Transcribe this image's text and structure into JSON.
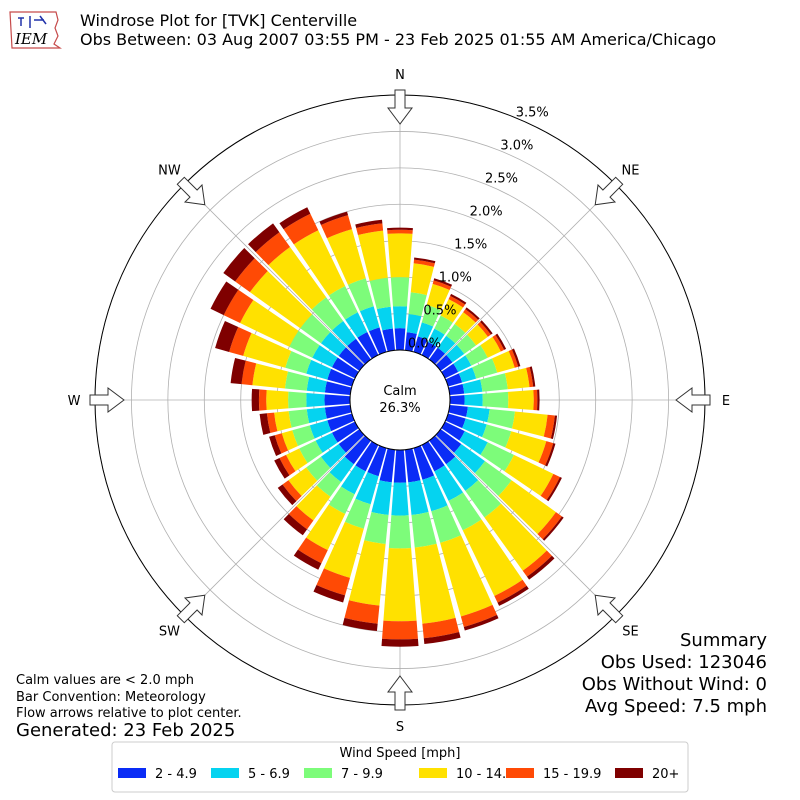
{
  "title": "Windrose Plot for [TVK] Centerville",
  "subtitle": "Obs Between: 03 Aug 2007 03:55 PM - 23 Feb 2025 01:55 AM America/Chicago",
  "logo_text": "IEM",
  "calm": {
    "label": "Calm",
    "value": "26.3%"
  },
  "summary": {
    "heading": "Summary",
    "obs_used": "Obs Used: 123046",
    "obs_without_wind": "Obs Without Wind: 0",
    "avg_speed": "Avg Speed: 7.5 mph"
  },
  "notes": {
    "calm_def": "Calm values are < 2.0 mph",
    "convention": "Bar Convention: Meteorology",
    "arrows": "Flow arrows relative to plot center.",
    "generated": "Generated: 23 Feb 2025"
  },
  "legend": {
    "title": "Wind Speed [mph]",
    "items": [
      {
        "label": "2 - 4.9",
        "color": "#0a2cf6"
      },
      {
        "label": "5 - 6.9",
        "color": "#05d3f0"
      },
      {
        "label": "7 - 9.9",
        "color": "#7dfc7a"
      },
      {
        "label": "10 - 14.9",
        "color": "#ffe100"
      },
      {
        "label": "15 - 19.9",
        "color": "#ff4a05"
      },
      {
        "label": "20+",
        "color": "#7f0000"
      }
    ]
  },
  "chart_data": {
    "type": "windrose",
    "title": "Windrose Plot for [TVK] Centerville",
    "compass_labels": [
      "N",
      "NE",
      "E",
      "SE",
      "S",
      "SW",
      "W",
      "NW"
    ],
    "radial_ticks": [
      "0.0%",
      "0.5%",
      "1.0%",
      "1.5%",
      "2.0%",
      "2.5%",
      "3.0%",
      "3.5%"
    ],
    "rlim": [
      0,
      3.5
    ],
    "units": "percent of observations",
    "directions_deg": [
      0,
      10,
      20,
      30,
      40,
      50,
      60,
      70,
      80,
      90,
      100,
      110,
      120,
      130,
      140,
      150,
      160,
      170,
      180,
      190,
      200,
      210,
      220,
      230,
      240,
      250,
      260,
      270,
      280,
      290,
      300,
      310,
      320,
      330,
      340,
      350
    ],
    "series": [
      {
        "name": "2 - 4.9",
        "color": "#0a2cf6",
        "values": [
          0.3,
          0.25,
          0.22,
          0.2,
          0.2,
          0.2,
          0.2,
          0.2,
          0.2,
          0.2,
          0.25,
          0.25,
          0.3,
          0.35,
          0.4,
          0.4,
          0.45,
          0.45,
          0.45,
          0.45,
          0.4,
          0.4,
          0.4,
          0.35,
          0.35,
          0.35,
          0.35,
          0.35,
          0.35,
          0.35,
          0.35,
          0.35,
          0.35,
          0.35,
          0.35,
          0.3
        ]
      },
      {
        "name": "5 - 6.9",
        "color": "#05d3f0",
        "values": [
          0.3,
          0.25,
          0.2,
          0.2,
          0.2,
          0.2,
          0.2,
          0.2,
          0.25,
          0.25,
          0.3,
          0.3,
          0.35,
          0.4,
          0.45,
          0.45,
          0.45,
          0.45,
          0.45,
          0.45,
          0.4,
          0.35,
          0.3,
          0.3,
          0.25,
          0.25,
          0.25,
          0.25,
          0.25,
          0.3,
          0.3,
          0.3,
          0.3,
          0.3,
          0.3,
          0.3
        ]
      },
      {
        "name": "7 - 9.9",
        "color": "#7dfc7a",
        "values": [
          0.4,
          0.3,
          0.25,
          0.2,
          0.2,
          0.2,
          0.25,
          0.3,
          0.35,
          0.35,
          0.35,
          0.35,
          0.4,
          0.45,
          0.45,
          0.45,
          0.45,
          0.45,
          0.45,
          0.4,
          0.35,
          0.3,
          0.25,
          0.25,
          0.25,
          0.25,
          0.25,
          0.25,
          0.3,
          0.3,
          0.35,
          0.35,
          0.4,
          0.4,
          0.4,
          0.4
        ]
      },
      {
        "name": "10 - 14.9",
        "color": "#ffe100",
        "values": [
          0.6,
          0.4,
          0.3,
          0.25,
          0.2,
          0.2,
          0.2,
          0.25,
          0.3,
          0.35,
          0.45,
          0.5,
          0.6,
          0.75,
          0.9,
          1.0,
          1.05,
          1.05,
          1.0,
          0.85,
          0.7,
          0.55,
          0.4,
          0.3,
          0.2,
          0.15,
          0.2,
          0.3,
          0.45,
          0.6,
          0.75,
          0.85,
          0.85,
          0.85,
          0.7,
          0.65
        ]
      },
      {
        "name": "15 - 19.9",
        "color": "#ff4a05",
        "values": [
          0.05,
          0.05,
          0.05,
          0.05,
          0.05,
          0.05,
          0.05,
          0.05,
          0.05,
          0.05,
          0.1,
          0.1,
          0.1,
          0.1,
          0.1,
          0.1,
          0.15,
          0.2,
          0.25,
          0.25,
          0.25,
          0.2,
          0.15,
          0.1,
          0.1,
          0.1,
          0.1,
          0.1,
          0.15,
          0.2,
          0.25,
          0.25,
          0.25,
          0.25,
          0.2,
          0.1
        ]
      },
      {
        "name": "20+",
        "color": "#7f0000",
        "values": [
          0.03,
          0.03,
          0.03,
          0.03,
          0.03,
          0.03,
          0.03,
          0.03,
          0.03,
          0.03,
          0.03,
          0.03,
          0.03,
          0.03,
          0.05,
          0.05,
          0.05,
          0.08,
          0.1,
          0.1,
          0.1,
          0.1,
          0.1,
          0.08,
          0.08,
          0.08,
          0.1,
          0.1,
          0.15,
          0.2,
          0.2,
          0.2,
          0.15,
          0.1,
          0.05,
          0.05
        ]
      }
    ]
  }
}
